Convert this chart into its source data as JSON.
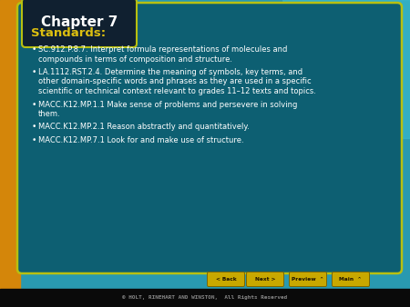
{
  "title": "Chapter 7",
  "standards_label": "Standards:",
  "bullets": [
    "SC.912.P.8.7. Interpret formula representations of molecules and\ncompounds in terms of composition and structure.",
    "LA.1112.RST.2.4. Determine the meaning of symbols, key terms, and\nother domain-specific words and phrases as they are used in a specific\nscientific or technical context relevant to grades 11–12 texts and topics.",
    "MACC.K12.MP.1.1 Make sense of problems and persevere in solving\nthem.",
    "MACC.K12.MP.2.1 Reason abstractly and quantitatively.",
    "MACC.K12.MP.7.1 Look for and make use of structure."
  ],
  "bg_outer": "#2999b0",
  "bg_outer_right": "#38b8cc",
  "bg_left_strip": "#d4860a",
  "bg_main": "#0d5f72",
  "bg_chapter_box_top": "#102030",
  "bg_chapter_box_bottom": "#1a4a5a",
  "title_color": "#ffffff",
  "standards_color": "#ddc010",
  "bullet_color": "#ffffff",
  "border_color": "#b8c010",
  "footer_bg": "#0a0a0a",
  "footer_text": "© HOLT, RINEHART AND WINSTON,  All Rights Reserved",
  "footer_color": "#888888",
  "nav_bg": "#c8a800",
  "nav_border": "#7a6600",
  "nav_text_color": "#1a1000",
  "nav_labels": [
    "< Back",
    "Next >",
    "Preview  ⌃",
    "Main  ⌃"
  ],
  "right_accent_color": "#38b8cc"
}
